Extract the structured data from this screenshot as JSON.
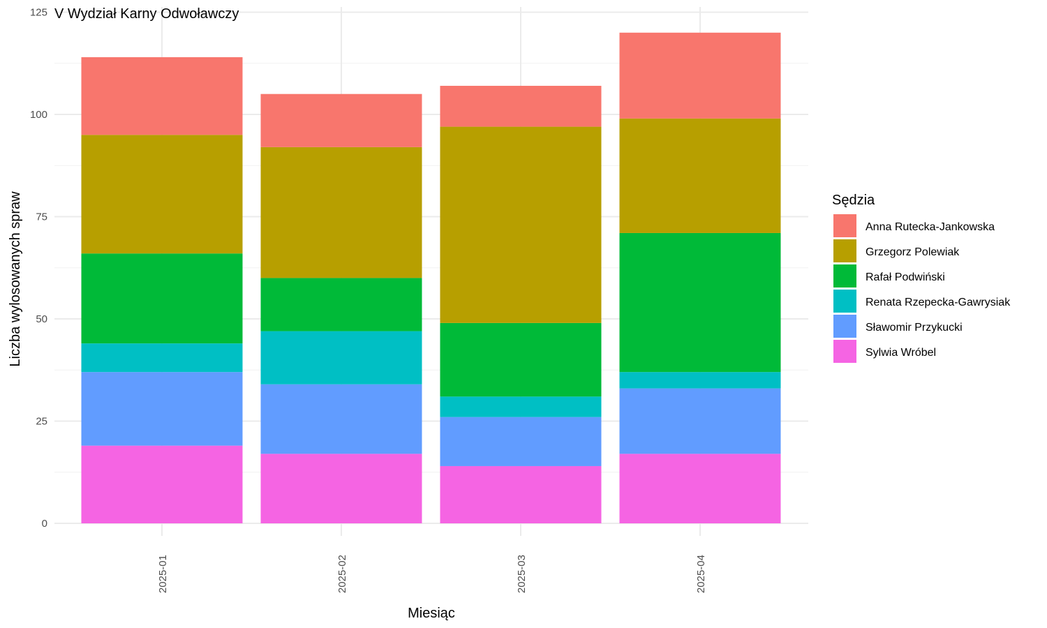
{
  "chart_data": {
    "type": "bar",
    "stacked": true,
    "title": "V Wydział Karny Odwoławczy",
    "xlabel": "Miesiąc",
    "ylabel": "Liczba wylosowanych spraw",
    "categories": [
      "2025-01",
      "2025-02",
      "2025-03",
      "2025-04"
    ],
    "ylim": [
      0,
      125
    ],
    "yticks": [
      0,
      25,
      50,
      75,
      100,
      125
    ],
    "grid": true,
    "legend": {
      "title": "Sędzia",
      "position": "right"
    },
    "series": [
      {
        "name": "Anna Rutecka-Jankowska",
        "color": "#F8766D",
        "values": [
          19,
          13,
          10,
          21
        ]
      },
      {
        "name": "Grzegorz Polewiak",
        "color": "#B79F00",
        "values": [
          29,
          32,
          48,
          28
        ]
      },
      {
        "name": "Rafał Podwiński",
        "color": "#00BA38",
        "values": [
          22,
          13,
          18,
          34
        ]
      },
      {
        "name": "Renata Rzepecka-Gawrysiak",
        "color": "#00BFC4",
        "values": [
          7,
          13,
          5,
          4
        ]
      },
      {
        "name": "Sławomir Przykucki",
        "color": "#619CFF",
        "values": [
          18,
          17,
          12,
          16
        ]
      },
      {
        "name": "Sylwia Wróbel",
        "color": "#F564E3",
        "values": [
          19,
          17,
          14,
          17
        ]
      }
    ]
  }
}
